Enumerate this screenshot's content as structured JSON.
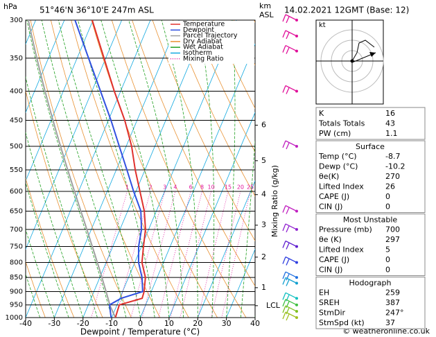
{
  "chart_data": {
    "type": "skew-t",
    "header": {
      "unit": "hPa",
      "location": "51°46'N  36°10'E  247m  ASL",
      "km": "km",
      "asl": "ASL",
      "date": "14.02.2021  12GMT  (Base: 12)"
    },
    "xlabel": "Dewpoint / Temperature (°C)",
    "y2label": "Mixing Ratio (g/kg)",
    "xlim": [
      -40,
      40
    ],
    "xticks": [
      -40,
      -30,
      -20,
      -10,
      0,
      10,
      20,
      30,
      40
    ],
    "ylim": [
      1000,
      300
    ],
    "yticks": [
      300,
      350,
      400,
      450,
      500,
      550,
      600,
      650,
      700,
      750,
      800,
      850,
      900,
      950,
      1000
    ],
    "log_y": true,
    "pressure": [
      1000,
      950,
      925,
      900,
      850,
      800,
      750,
      700,
      650,
      600,
      550,
      500,
      450,
      400,
      350,
      300
    ],
    "series": [
      {
        "name": "Temperature",
        "color": "#e0302c",
        "values": [
          -8.7,
          -9.2,
          -2.2,
          -2.5,
          -4.1,
          -7.5,
          -9.3,
          -11.1,
          -14.2,
          -18.6,
          -23.4,
          -28.1,
          -34.3,
          -42.2,
          -50.6,
          -60.3
        ]
      },
      {
        "name": "Dewpoint",
        "color": "#3050e0",
        "values": [
          -10.2,
          -12.6,
          -9.5,
          -3.0,
          -5.3,
          -8.7,
          -11,
          -12.5,
          -15.4,
          -20.8,
          -26.3,
          -32.4,
          -39.1,
          -47,
          -56,
          -66.3
        ]
      }
    ],
    "background_lines": [
      {
        "name": "Parcel Trajectory",
        "color": "#a0a0a0"
      },
      {
        "name": "Dry Adiabat",
        "color": "#e89030"
      },
      {
        "name": "Wet Adiabat",
        "color": "#20a020"
      },
      {
        "name": "Isotherm",
        "color": "#10a8e0"
      },
      {
        "name": "Mixing Ratio",
        "color": "#e0109a"
      }
    ],
    "mixing_ratio_labels": [
      1,
      2,
      3,
      4,
      6,
      8,
      10,
      15,
      20,
      25
    ],
    "km_levels": [
      {
        "km": 1,
        "pressure": 886
      },
      {
        "km": 2,
        "pressure": 783
      },
      {
        "km": 3,
        "pressure": 688
      },
      {
        "km": 4,
        "pressure": 608
      },
      {
        "km": 5,
        "pressure": 530
      },
      {
        "km": 6,
        "pressure": 459
      }
    ],
    "lcl": {
      "label": "LCL",
      "pressure": 953
    },
    "winds": [
      {
        "pressure": 300,
        "color": "#e0109a"
      },
      {
        "pressure": 320,
        "color": "#e0109a"
      },
      {
        "pressure": 340,
        "color": "#e0109a"
      },
      {
        "pressure": 400,
        "color": "#e0109a"
      },
      {
        "pressure": 500,
        "color": "#c020c0"
      },
      {
        "pressure": 650,
        "color": "#c020c0"
      },
      {
        "pressure": 700,
        "color": "#9020d0"
      },
      {
        "pressure": 750,
        "color": "#6020d0"
      },
      {
        "pressure": 800,
        "color": "#3040e0"
      },
      {
        "pressure": 850,
        "color": "#2070e0"
      },
      {
        "pressure": 870,
        "color": "#10a0d0"
      },
      {
        "pressure": 925,
        "color": "#10c0c0"
      },
      {
        "pressure": 950,
        "color": "#40c040"
      },
      {
        "pressure": 975,
        "color": "#80c020"
      },
      {
        "pressure": 1000,
        "color": "#a0c020"
      }
    ]
  },
  "hodograph_plot": {
    "unit": "kt"
  },
  "panels": [
    {
      "rows": [
        [
          "K",
          16
        ],
        [
          "Totals Totals",
          43
        ],
        [
          "PW (cm)",
          1.1
        ]
      ]
    },
    {
      "title": "Surface",
      "rows": [
        [
          "Temp (°C)",
          -8.7
        ],
        [
          "Dewp (°C)",
          -10.2
        ],
        [
          "θe(K)",
          270
        ],
        [
          "Lifted Index",
          26
        ],
        [
          "CAPE (J)",
          0
        ],
        [
          "CIN (J)",
          0
        ]
      ]
    },
    {
      "title": "Most Unstable",
      "rows": [
        [
          "Pressure (mb)",
          700
        ],
        [
          "θe (K)",
          297
        ],
        [
          "Lifted Index",
          5
        ],
        [
          "CAPE (J)",
          0
        ],
        [
          "CIN (J)",
          0
        ]
      ]
    },
    {
      "title": "Hodograph",
      "rows": [
        [
          "EH",
          259
        ],
        [
          "SREH",
          387
        ],
        [
          "StmDir",
          "247°"
        ],
        [
          "StmSpd (kt)",
          37
        ]
      ]
    }
  ],
  "footer": "© weatheronline.co.uk"
}
